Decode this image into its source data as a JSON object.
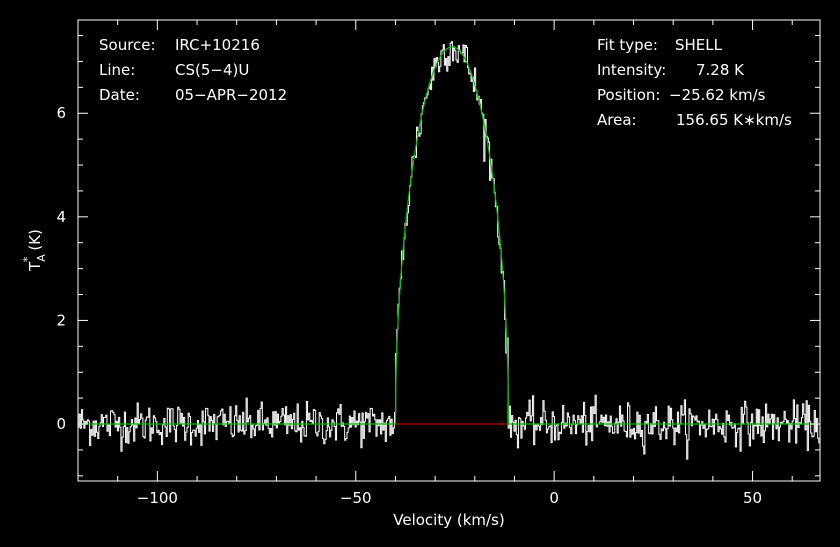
{
  "chart_data": {
    "type": "line",
    "xlabel": "Velocity (km/s)",
    "ylabel_main": "T",
    "ylabel_sup": "*",
    "ylabel_sub": "A",
    "ylabel_unit": "(K)",
    "xlim": [
      -120,
      67
    ],
    "ylim": [
      -1.1,
      7.8
    ],
    "x_ticks": [
      -100,
      -50,
      0,
      50
    ],
    "x_tick_labels": [
      "−100",
      "−50",
      "0",
      "50"
    ],
    "y_ticks": [
      0,
      2,
      4,
      6
    ],
    "y_tick_labels": [
      "0",
      "2",
      "4",
      "6"
    ],
    "grid": false,
    "colors": {
      "background": "#000000",
      "axes": "#ffffff",
      "spectrum": "#ffffff",
      "fit": "#00c000",
      "baseline": "#c00000"
    },
    "info_left": [
      {
        "label": "Source:",
        "value": "IRC+10216"
      },
      {
        "label": "Line:",
        "value": "CS(5−4)U"
      },
      {
        "label": "Date:",
        "value": "05−APR−2012"
      }
    ],
    "info_right": [
      {
        "label": "Fit type:",
        "value": "SHELL"
      },
      {
        "label": "Intensity:",
        "value": "7.28 K"
      },
      {
        "label": "Position:",
        "value": "−25.62 km/s"
      },
      {
        "label": "Area:",
        "value": "156.65 K∗km/s"
      }
    ],
    "fit": {
      "model": "shell",
      "peak_K": 7.28,
      "center_kms": -25.62,
      "area_Kkms": 156.65,
      "v_min": -40,
      "v_max": -11.5
    },
    "spectrum": {
      "x_start": -120,
      "x_end": 67,
      "channels": 640,
      "noise_rms_K": 0.2
    },
    "series": [
      {
        "name": "",
        "style": "histogram",
        "color": "#ffffff"
      },
      {
        "name": "",
        "style": "line",
        "color": "#00c000"
      },
      {
        "name": "",
        "style": "line",
        "color": "#c00000"
      }
    ]
  }
}
